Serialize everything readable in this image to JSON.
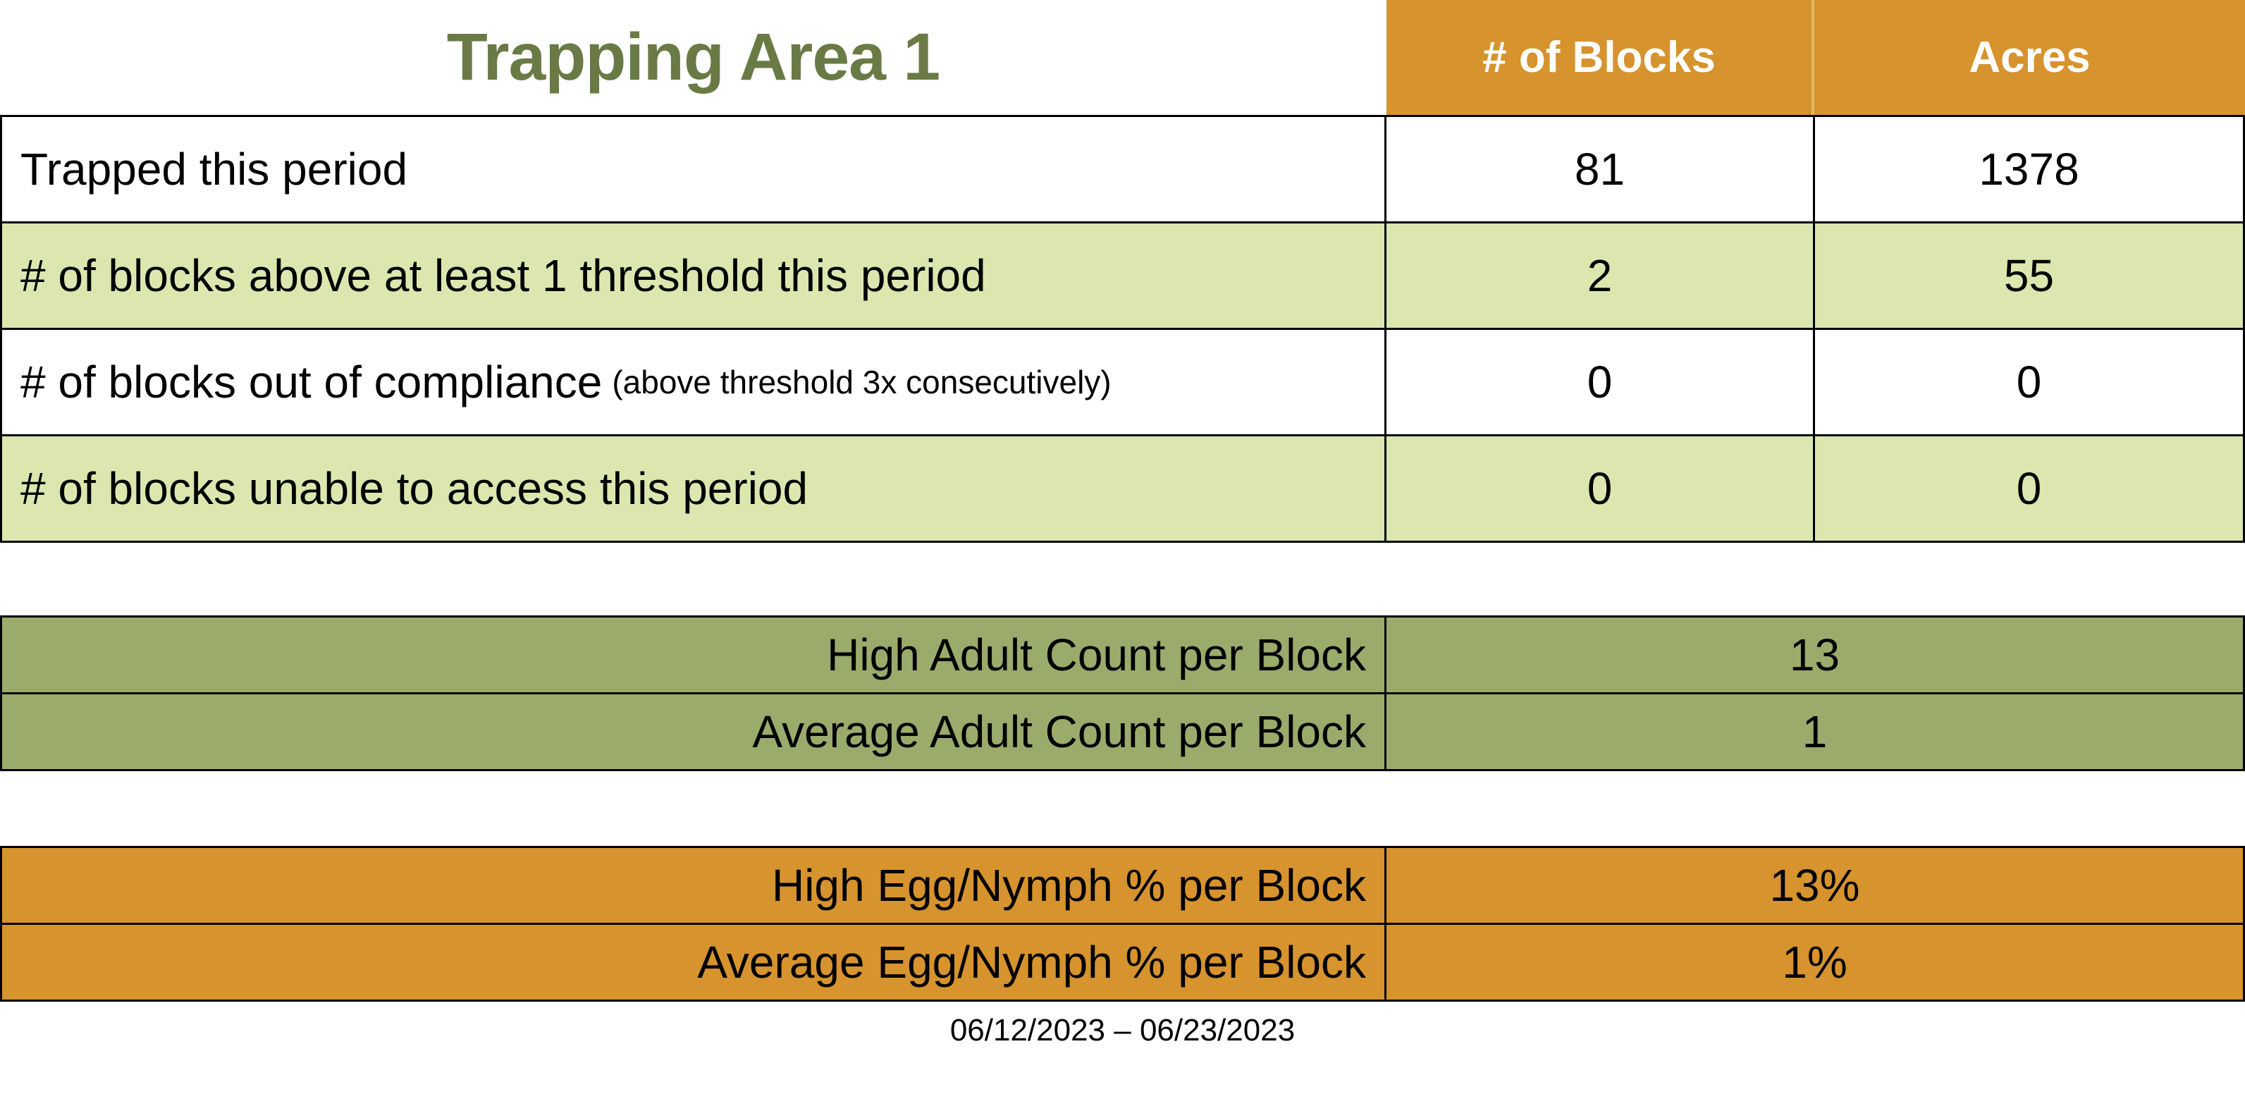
{
  "header": {
    "title": "Trapping Area 1",
    "col_blocks": "# of Blocks",
    "col_acres": "Acres"
  },
  "main_table": {
    "rows": [
      {
        "label": "Trapped this period",
        "note": "",
        "blocks": "81",
        "acres": "1378"
      },
      {
        "label": "# of blocks above at least 1 threshold this period",
        "note": "",
        "blocks": "2",
        "acres": "55"
      },
      {
        "label": "# of blocks out of compliance",
        "note": "(above threshold 3x consecutively)",
        "blocks": "0",
        "acres": "0"
      },
      {
        "label": "# of blocks unable to access this period",
        "note": "",
        "blocks": "0",
        "acres": "0"
      }
    ]
  },
  "adult_table": {
    "rows": [
      {
        "label": "High Adult Count per Block",
        "value": "13"
      },
      {
        "label": "Average Adult Count per Block",
        "value": "1"
      }
    ]
  },
  "egg_table": {
    "rows": [
      {
        "label": "High Egg/Nymph % per Block",
        "value": "13%"
      },
      {
        "label": "Average Egg/Nymph % per Block",
        "value": "1%"
      }
    ]
  },
  "footer": {
    "date_range": "06/12/2023 – 06/23/2023"
  },
  "colors": {
    "orange": "#D6932E",
    "light_green": "#DCE7AF",
    "olive": "#9BAB6B",
    "title_green": "#6A7A45"
  }
}
